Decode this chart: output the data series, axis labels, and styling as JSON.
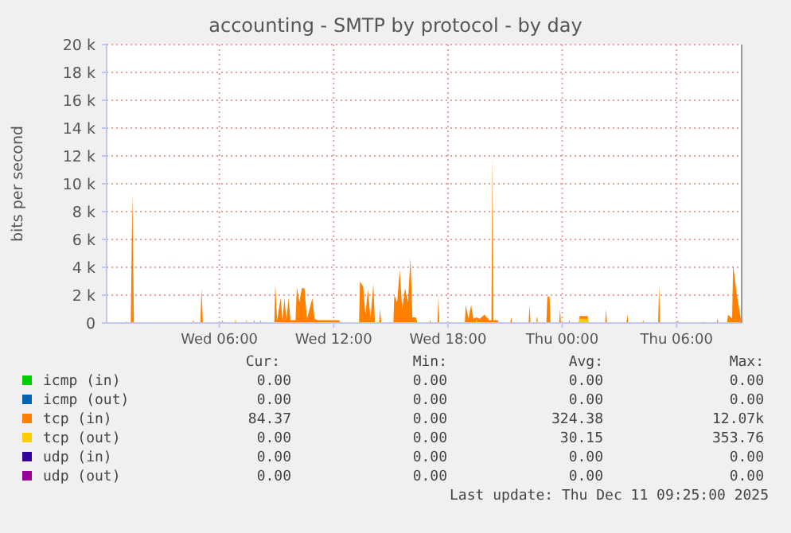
{
  "chart_data": {
    "type": "area",
    "title": "accounting - SMTP by protocol - by day",
    "ylabel": "bits per second",
    "xlim": [
      "2025-12-10T00:05",
      "2025-12-11T09:25"
    ],
    "xticks": [
      {
        "value": "2025-12-10T06:00",
        "label": "Wed 06:00"
      },
      {
        "value": "2025-12-10T12:00",
        "label": "Wed 12:00"
      },
      {
        "value": "2025-12-10T18:00",
        "label": "Wed 18:00"
      },
      {
        "value": "2025-12-11T00:00",
        "label": "Thu 00:00"
      },
      {
        "value": "2025-12-11T06:00",
        "label": "Thu 06:00"
      }
    ],
    "ylim": [
      0,
      20000
    ],
    "yticks": [
      0,
      {
        "value": 2000,
        "label": "2 k"
      },
      {
        "value": 4000,
        "label": "4 k"
      },
      {
        "value": 6000,
        "label": "6 k"
      },
      {
        "value": 8000,
        "label": "8 k"
      },
      {
        "value": 10000,
        "label": "10 k"
      },
      {
        "value": 12000,
        "label": "12 k"
      },
      {
        "value": 14000,
        "label": "14 k"
      },
      {
        "value": 16000,
        "label": "16 k"
      },
      {
        "value": 18000,
        "label": "18 k"
      },
      {
        "value": 20000,
        "label": "20 k"
      }
    ],
    "grid": true,
    "legend": "bottom",
    "series": [
      {
        "name": "icmp (in)",
        "color": "#00cc00"
      },
      {
        "name": "icmp (out)",
        "color": "#0066b3"
      },
      {
        "name": "tcp (in)",
        "color": "#ff8000",
        "x": [
          "2025-12-10T00:06",
          "2025-12-10T01:00",
          "2025-12-10T01:07",
          "2025-12-10T01:12",
          "2025-12-10T01:21",
          "2025-12-10T01:26",
          "2025-12-10T01:31",
          "2025-12-10T04:35",
          "2025-12-10T04:38",
          "2025-12-10T04:41",
          "2025-12-10T05:00",
          "2025-12-10T05:04",
          "2025-12-10T05:08",
          "2025-12-10T06:07",
          "2025-12-10T06:10",
          "2025-12-10T06:13",
          "2025-12-10T07:47",
          "2025-12-10T07:50",
          "2025-12-10T07:53",
          "2025-12-10T08:07",
          "2025-12-10T08:10",
          "2025-12-10T08:13",
          "2025-12-10T08:53",
          "2025-12-10T08:56",
          "2025-12-10T09:02",
          "2025-12-10T09:13",
          "2025-12-10T09:19",
          "2025-12-10T09:25",
          "2025-12-10T09:31",
          "2025-12-10T09:38",
          "2025-12-10T09:44",
          "2025-12-10T10:00",
          "2025-12-10T10:04",
          "2025-12-10T10:12",
          "2025-12-10T10:20",
          "2025-12-10T10:28",
          "2025-12-10T10:36",
          "2025-12-10T10:53",
          "2025-12-10T11:00",
          "2025-12-10T11:10",
          "2025-12-10T12:17",
          "2025-12-10T12:22",
          "2025-12-10T13:20",
          "2025-12-10T13:23",
          "2025-12-10T13:33",
          "2025-12-10T13:40",
          "2025-12-10T13:48",
          "2025-12-10T13:56",
          "2025-12-10T14:05",
          "2025-12-10T14:10",
          "2025-12-10T14:23",
          "2025-12-10T14:26",
          "2025-12-10T14:30",
          "2025-12-10T15:08",
          "2025-12-10T15:11",
          "2025-12-10T15:20",
          "2025-12-10T15:28",
          "2025-12-10T15:36",
          "2025-12-10T15:45",
          "2025-12-10T15:54",
          "2025-12-10T16:02",
          "2025-12-10T16:08",
          "2025-12-10T16:19",
          "2025-12-10T16:24",
          "2025-12-10T17:01",
          "2025-12-10T17:04",
          "2025-12-10T17:07",
          "2025-12-10T17:27",
          "2025-12-10T17:30",
          "2025-12-10T17:33",
          "2025-12-10T18:53",
          "2025-12-10T18:56",
          "2025-12-10T19:05",
          "2025-12-10T19:13",
          "2025-12-10T19:20",
          "2025-12-10T19:30",
          "2025-12-10T19:40",
          "2025-12-10T19:55",
          "2025-12-10T20:10",
          "2025-12-10T20:17",
          "2025-12-10T20:20",
          "2025-12-10T20:23",
          "2025-12-10T20:37",
          "2025-12-10T20:40",
          "2025-12-10T21:16",
          "2025-12-10T21:19",
          "2025-12-10T21:22",
          "2025-12-10T22:14",
          "2025-12-10T22:17",
          "2025-12-10T22:20",
          "2025-12-10T22:38",
          "2025-12-10T22:41",
          "2025-12-10T22:44",
          "2025-12-10T23:10",
          "2025-12-10T23:13",
          "2025-12-10T23:20",
          "2025-12-10T23:23",
          "2025-12-10T23:50",
          "2025-12-10T23:53",
          "2025-12-10T23:56",
          "2025-12-11T00:19",
          "2025-12-11T00:22",
          "2025-12-11T00:25",
          "2025-12-11T00:52",
          "2025-12-11T00:55",
          "2025-12-11T01:20",
          "2025-12-11T01:23",
          "2025-12-11T02:15",
          "2025-12-11T02:18",
          "2025-12-11T02:21",
          "2025-12-11T03:22",
          "2025-12-11T03:25",
          "2025-12-11T03:28",
          "2025-12-11T04:12",
          "2025-12-11T04:15",
          "2025-12-11T04:18",
          "2025-12-11T05:02",
          "2025-12-11T05:05",
          "2025-12-11T05:08",
          "2025-12-11T06:01",
          "2025-12-11T06:04",
          "2025-12-11T06:07",
          "2025-12-11T07:24",
          "2025-12-11T07:27",
          "2025-12-11T07:30",
          "2025-12-11T08:06",
          "2025-12-11T08:09",
          "2025-12-11T08:12",
          "2025-12-11T08:39",
          "2025-12-11T08:42",
          "2025-12-11T08:55",
          "2025-12-11T08:58",
          "2025-12-11T09:10",
          "2025-12-11T09:24"
        ],
        "values": [
          0,
          0,
          100,
          0,
          0,
          9300,
          0,
          0,
          200,
          0,
          0,
          2500,
          0,
          0,
          200,
          0,
          0,
          200,
          0,
          0,
          200,
          0,
          0,
          2800,
          200,
          1800,
          200,
          1800,
          200,
          1800,
          200,
          200,
          2600,
          1500,
          2500,
          2500,
          300,
          1800,
          300,
          200,
          200,
          0,
          0,
          3000,
          2600,
          600,
          2400,
          300,
          2800,
          0,
          0,
          1000,
          0,
          0,
          2000,
          1500,
          3800,
          1000,
          2500,
          1500,
          4700,
          400,
          400,
          0,
          0,
          200,
          0,
          0,
          1900,
          0,
          0,
          1300,
          300,
          1300,
          300,
          400,
          300,
          600,
          200,
          200,
          12000,
          200,
          200,
          0,
          0,
          400,
          0,
          0,
          1300,
          0,
          0,
          500,
          0,
          0,
          1900,
          1900,
          0,
          0,
          1000,
          0,
          0,
          200,
          0,
          0,
          500,
          500,
          0,
          0,
          1000,
          0,
          0,
          600,
          0,
          0,
          200,
          0,
          0,
          2700,
          0,
          0,
          200,
          0,
          0,
          100,
          0,
          0,
          300,
          0,
          0,
          600,
          300,
          4200,
          2000,
          100
        ]
      },
      {
        "name": "tcp (out)",
        "color": "#ffcc00",
        "x": [
          "2025-12-10T00:06",
          "2025-12-10T06:48",
          "2025-12-10T06:51",
          "2025-12-10T06:54",
          "2025-12-10T07:22",
          "2025-12-10T07:25",
          "2025-12-10T07:28",
          "2025-12-10T19:27",
          "2025-12-10T19:30",
          "2025-12-10T19:33",
          "2025-12-10T22:38",
          "2025-12-10T22:41",
          "2025-12-10T22:44",
          "2025-12-11T00:52",
          "2025-12-11T00:55",
          "2025-12-11T01:20",
          "2025-12-11T01:23",
          "2025-12-11T09:24"
        ],
        "values": [
          0,
          0,
          300,
          0,
          0,
          300,
          0,
          0,
          300,
          0,
          0,
          300,
          0,
          0,
          300,
          300,
          0,
          0
        ]
      },
      {
        "name": "udp (in)",
        "color": "#330099"
      },
      {
        "name": "udp (out)",
        "color": "#990099"
      }
    ],
    "annotations": [
      "Cur:",
      "Min:",
      "Avg:",
      "Max:",
      "0.00",
      "0.00",
      "0.00",
      "0.00",
      "0.00",
      "0.00",
      "0.00",
      "0.00",
      "84.37",
      "0.00",
      "324.38",
      "12.07k",
      "0.00",
      "0.00",
      "30.15",
      "353.76",
      "0.00",
      "0.00",
      "0.00",
      "0.00",
      "0.00",
      "0.00",
      "0.00",
      "0.00",
      "Last update: Thu Dec 11 09:25:00 2025"
    ]
  }
}
